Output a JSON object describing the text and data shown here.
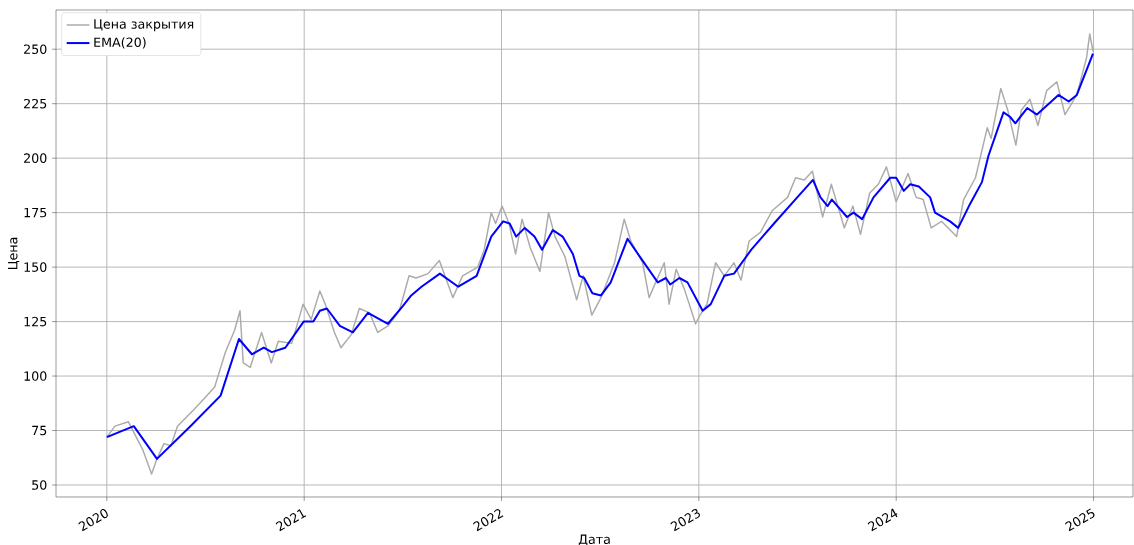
{
  "chart_data": {
    "type": "line",
    "xlabel": "Дата",
    "ylabel": "Цена",
    "xlim": [
      "2019-09-29",
      "2025-03-15"
    ],
    "ylim": [
      44.5,
      268
    ],
    "xticks": [
      "2020",
      "2021",
      "2022",
      "2023",
      "2024",
      "2025"
    ],
    "yticks": [
      50,
      75,
      100,
      125,
      150,
      175,
      200,
      225,
      250
    ],
    "grid": true,
    "legend": "top left",
    "marker": "none",
    "line_style": "solid",
    "series": [
      {
        "name": "Цена закрытия",
        "color": "#ababab",
        "x": [
          "2020-01-01",
          "2020-01-16",
          "2020-02-10",
          "2020-03-08",
          "2020-03-24",
          "2020-04-03",
          "2020-04-16",
          "2020-04-29",
          "2020-05-11",
          "2020-06-12",
          "2020-07-01",
          "2020-07-19",
          "2020-08-08",
          "2020-08-25",
          "2020-09-04",
          "2020-09-10",
          "2020-09-23",
          "2020-10-14",
          "2020-11-01",
          "2020-11-14",
          "2020-12-09",
          "2020-12-30",
          "2021-01-14",
          "2021-01-30",
          "2021-02-09",
          "2021-02-26",
          "2021-03-10",
          "2021-03-29",
          "2021-04-13",
          "2021-05-02",
          "2021-05-17",
          "2021-06-05",
          "2021-06-26",
          "2021-07-14",
          "2021-07-27",
          "2021-08-18",
          "2021-09-08",
          "2021-10-03",
          "2021-10-21",
          "2021-11-18",
          "2021-11-30",
          "2021-12-13",
          "2021-12-21",
          "2022-01-02",
          "2022-01-15",
          "2022-01-27",
          "2022-02-08",
          "2022-02-23",
          "2022-03-13",
          "2022-03-29",
          "2022-04-10",
          "2022-04-28",
          "2022-05-20",
          "2022-06-01",
          "2022-06-17",
          "2022-07-04",
          "2022-07-29",
          "2022-08-16",
          "2022-08-28",
          "2022-09-19",
          "2022-10-01",
          "2022-10-29",
          "2022-11-07",
          "2022-11-20",
          "2022-12-05",
          "2022-12-26",
          "2023-01-01",
          "2023-01-16",
          "2023-02-01",
          "2023-02-17",
          "2023-03-07",
          "2023-03-20",
          "2023-04-04",
          "2023-04-25",
          "2023-05-17",
          "2023-06-14",
          "2023-06-29",
          "2023-07-15",
          "2023-07-30",
          "2023-08-18",
          "2023-09-03",
          "2023-09-27",
          "2023-10-13",
          "2023-10-27",
          "2023-11-13",
          "2023-11-29",
          "2023-12-14",
          "2024-01-01",
          "2024-01-23",
          "2024-02-07",
          "2024-02-20",
          "2024-03-06",
          "2024-03-25",
          "2024-04-22",
          "2024-05-05",
          "2024-05-27",
          "2024-06-18",
          "2024-06-25",
          "2024-07-13",
          "2024-07-26",
          "2024-08-10",
          "2024-08-20",
          "2024-09-05",
          "2024-09-20",
          "2024-10-06",
          "2024-10-25",
          "2024-11-09",
          "2024-12-01",
          "2024-12-19",
          "2024-12-25",
          "2024-12-31"
        ],
        "values": [
          72,
          77,
          79,
          66,
          55,
          62,
          69,
          68,
          77,
          85,
          90,
          95,
          111,
          121,
          130,
          106,
          104,
          120,
          106,
          116,
          115,
          133,
          126,
          139,
          133,
          120,
          113,
          119,
          131,
          129,
          120,
          123,
          130,
          146,
          145,
          147,
          153,
          136,
          146,
          150,
          158,
          175,
          170,
          178,
          170,
          156,
          172,
          159,
          148,
          175,
          164,
          155,
          135,
          146,
          128,
          136,
          152,
          172,
          162,
          152,
          136,
          152,
          133,
          149,
          140,
          124,
          127,
          133,
          152,
          146,
          152,
          144,
          162,
          166,
          176,
          182,
          191,
          190,
          194,
          173,
          188,
          168,
          178,
          165,
          184,
          188,
          196,
          180,
          193,
          182,
          181,
          168,
          171,
          164,
          181,
          191,
          214,
          209,
          232,
          222,
          206,
          222,
          227,
          215,
          231,
          235,
          220,
          229,
          246,
          257,
          249
        ]
      },
      {
        "name": "EMA(20)",
        "color": "#0000ff",
        "x": [
          "2020-01-01",
          "2020-02-20",
          "2020-04-03",
          "2020-06-04",
          "2020-07-30",
          "2020-09-02",
          "2020-09-26",
          "2020-10-18",
          "2020-11-02",
          "2020-11-27",
          "2020-12-31",
          "2021-01-18",
          "2021-01-30",
          "2021-02-12",
          "2021-03-08",
          "2021-04-01",
          "2021-04-29",
          "2021-06-05",
          "2021-07-02",
          "2021-07-18",
          "2021-08-06",
          "2021-09-09",
          "2021-10-13",
          "2021-11-16",
          "2021-12-13",
          "2022-01-04",
          "2022-01-16",
          "2022-01-28",
          "2022-02-13",
          "2022-03-03",
          "2022-03-17",
          "2022-04-06",
          "2022-04-24",
          "2022-05-13",
          "2022-05-25",
          "2022-06-03",
          "2022-06-18",
          "2022-07-04",
          "2022-07-22",
          "2022-08-22",
          "2022-09-16",
          "2022-10-17",
          "2022-11-01",
          "2022-11-09",
          "2022-11-26",
          "2022-12-11",
          "2023-01-08",
          "2023-01-23",
          "2023-02-17",
          "2023-03-07",
          "2023-04-08",
          "2023-05-20",
          "2023-07-02",
          "2023-07-31",
          "2023-08-14",
          "2023-08-27",
          "2023-09-04",
          "2023-10-02",
          "2023-10-14",
          "2023-10-30",
          "2023-11-20",
          "2023-12-21",
          "2024-01-01",
          "2024-01-15",
          "2024-01-27",
          "2024-02-12",
          "2024-03-04",
          "2024-03-13",
          "2024-04-10",
          "2024-04-25",
          "2024-05-17",
          "2024-06-08",
          "2024-06-20",
          "2024-07-18",
          "2024-07-30",
          "2024-08-09",
          "2024-08-31",
          "2024-09-18",
          "2024-10-06",
          "2024-10-28",
          "2024-11-16",
          "2024-12-01",
          "2024-12-31"
        ],
        "values": [
          72,
          77,
          62,
          77,
          91,
          117,
          110,
          113,
          111,
          113,
          125,
          125,
          130,
          131,
          123,
          120,
          129,
          124,
          132,
          137,
          141,
          147,
          141,
          146,
          164,
          171,
          170,
          164,
          168,
          164,
          158,
          167,
          164,
          156,
          146,
          145,
          138,
          137,
          143,
          163,
          154,
          143,
          145,
          142,
          145,
          143,
          130,
          133,
          146,
          147,
          158,
          170,
          182,
          190,
          182,
          178,
          181,
          173,
          175,
          172,
          182,
          191,
          191,
          185,
          188,
          187,
          182,
          175,
          171,
          168,
          179,
          189,
          201,
          221,
          219,
          216,
          223,
          220,
          224,
          229,
          226,
          229,
          248
        ]
      }
    ]
  }
}
